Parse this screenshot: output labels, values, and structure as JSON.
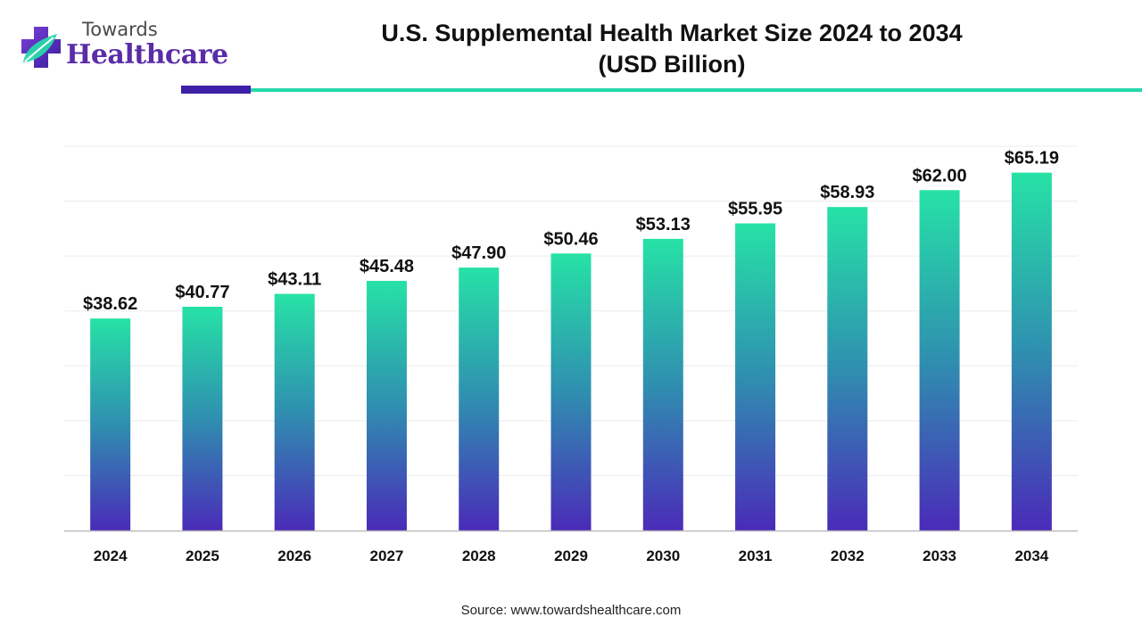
{
  "brand": {
    "line1": "Towards",
    "line2": "Healthcare",
    "logo_icon": "medical-cross-leaf-icon",
    "colors": {
      "purple": "#5a2ca8",
      "green": "#26d7a8"
    }
  },
  "title_line1": "U.S. Supplemental Health Market Size 2024 to 2034",
  "title_line2": "(USD Billion)",
  "source": "Source: www.towardshealthcare.com",
  "chart_data": {
    "type": "bar",
    "title": "U.S. Supplemental Health Market Size 2024 to 2034 (USD Billion)",
    "xlabel": "",
    "ylabel": "",
    "categories": [
      "2024",
      "2025",
      "2026",
      "2027",
      "2028",
      "2029",
      "2030",
      "2031",
      "2032",
      "2033",
      "2034"
    ],
    "values": [
      38.62,
      40.77,
      43.11,
      45.48,
      47.9,
      50.46,
      53.13,
      55.95,
      58.93,
      62.0,
      65.19
    ],
    "value_labels": [
      "$38.62",
      "$40.77",
      "$43.11",
      "$45.48",
      "$47.90",
      "$50.46",
      "$53.13",
      "$55.95",
      "$58.93",
      "$62.00",
      "$65.19"
    ],
    "ylim": [
      0,
      70
    ],
    "grid": true,
    "legend": "none",
    "bar_gradient": {
      "top": "#26e2a6",
      "middle": "#2f8fb0",
      "bottom": "#4a2bb8"
    }
  }
}
